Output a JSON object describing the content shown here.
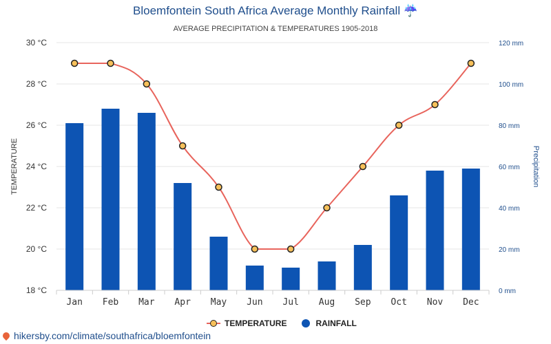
{
  "title": "Bloemfontein South Africa Average Monthly Rainfall ☔",
  "subtitle": "AVERAGE PRECIPITATION & TEMPERATURES 1905-2018",
  "footer": "hikersby.com/climate/southafrica/bloemfontein",
  "colors": {
    "temperature_line": "#e8645c",
    "temperature_marker": "#f7c05a",
    "rainfall_bar": "#0d54b3",
    "title": "#1f4e8c"
  },
  "icons": {
    "footer": "map-pin-icon"
  },
  "chart_data": {
    "type": "bar",
    "categories": [
      "Jan",
      "Feb",
      "Mar",
      "Apr",
      "May",
      "Jun",
      "Jul",
      "Aug",
      "Sep",
      "Oct",
      "Nov",
      "Dec"
    ],
    "series": [
      {
        "name": "TEMPERATURE",
        "kind": "line",
        "axis": "left",
        "values": [
          29,
          29,
          28,
          25,
          23,
          20,
          20,
          22,
          24,
          26,
          27,
          29
        ]
      },
      {
        "name": "RAINFALL",
        "kind": "bar",
        "axis": "right",
        "values": [
          81,
          88,
          86,
          52,
          26,
          12,
          11,
          14,
          22,
          46,
          58,
          59
        ]
      }
    ],
    "ylabel": "TEMPERATURE",
    "y2label": "Precipitation",
    "ylim": [
      18,
      30
    ],
    "y2lim": [
      0,
      120
    ],
    "yticks": [
      "18 °C",
      "20 °C",
      "22 °C",
      "24 °C",
      "26 °C",
      "28 °C",
      "30 °C"
    ],
    "y2ticks": [
      "0 mm",
      "20 mm",
      "40 mm",
      "60 mm",
      "80 mm",
      "100 mm",
      "120 mm"
    ],
    "grid": true,
    "legend": "bottom-center"
  }
}
